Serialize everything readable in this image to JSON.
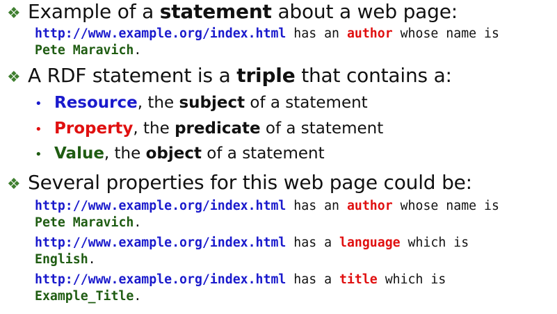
{
  "bullets": [
    {
      "pre": "Example of a ",
      "bold": "statement",
      "post": " about a web page:"
    },
    {
      "pre": "A RDF statement is a ",
      "bold": "triple",
      "post": " that contains a:"
    },
    {
      "text": "Several properties for this web page could be:"
    }
  ],
  "example_statement": {
    "url": "http://www.example.org/index.html",
    "mid": " has an ",
    "prop": "author",
    "tail": " whose name is",
    "value": "Pete Maravich",
    "end": "."
  },
  "triple_parts": [
    {
      "term": "Resource",
      "pre": ", the ",
      "role": "subject",
      "post": " of a statement"
    },
    {
      "term": "Property",
      "pre": ", the ",
      "role": "predicate",
      "post": " of a statement"
    },
    {
      "term": "Value",
      "pre": ", the ",
      "role": "object",
      "post": " of a statement"
    }
  ],
  "properties": [
    {
      "url": "http://www.example.org/index.html",
      "mid": " has an ",
      "prop": "author",
      "tail": " whose name is",
      "value": "Pete Maravich",
      "end": "."
    },
    {
      "url": "http://www.example.org/index.html",
      "mid": " has a ",
      "prop": "language",
      "tail": " which is",
      "value": "English",
      "end": "."
    },
    {
      "url": "http://www.example.org/index.html",
      "mid": " has a ",
      "prop": "title",
      "tail": " which is",
      "value": "Example_Title",
      "end": "."
    }
  ],
  "colors": {
    "bullet": "#3f7f2f",
    "resource": "#1a1acc",
    "property": "#e01010",
    "value": "#1f5c12"
  },
  "icons": {
    "main_bullet": "diamond-bullet-icon",
    "sub_bullet": "dot-bullet-icon"
  }
}
